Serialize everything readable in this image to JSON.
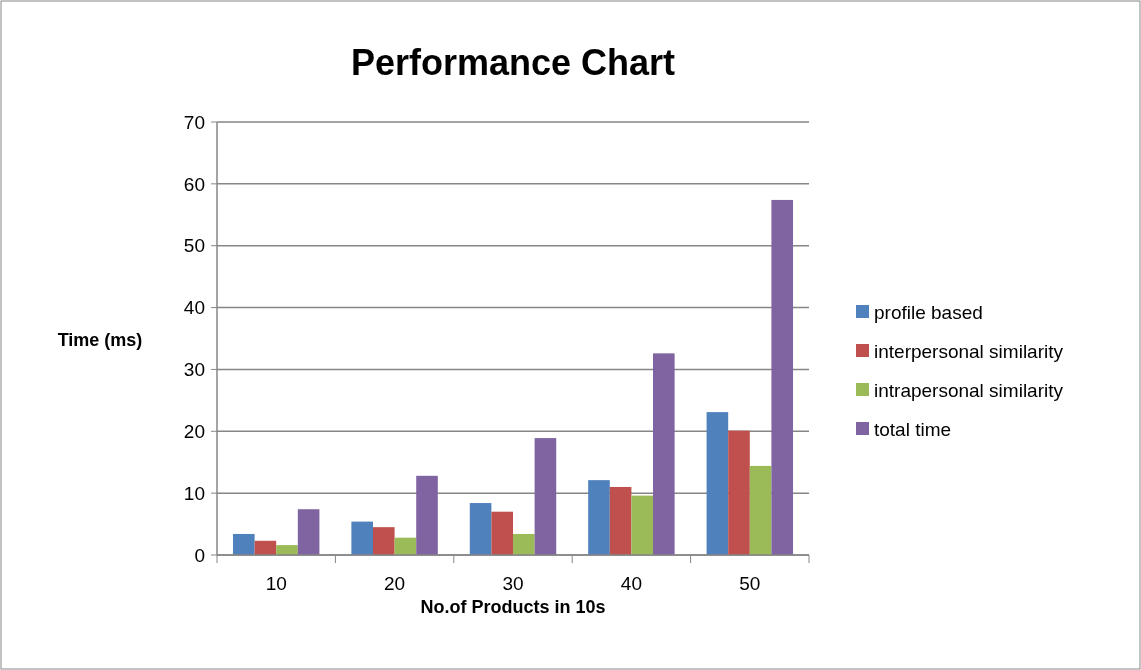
{
  "chart_data": {
    "type": "bar",
    "title": "Performance Chart",
    "xlabel": "No.of Products in 10s",
    "ylabel": "Time (ms)",
    "categories": [
      "10",
      "20",
      "30",
      "40",
      "50"
    ],
    "series": [
      {
        "name": "profile based",
        "color": "#4f81bd",
        "values": [
          3.4,
          5.4,
          8.4,
          12.1,
          23.1
        ]
      },
      {
        "name": "interpersonal similarity",
        "color": "#c0504d",
        "values": [
          2.3,
          4.5,
          7.0,
          11.0,
          20.1
        ]
      },
      {
        "name": "intrapersonal similarity",
        "color": "#9bbb59",
        "values": [
          1.6,
          2.8,
          3.4,
          9.6,
          14.4
        ]
      },
      {
        "name": "total time",
        "color": "#8064a2",
        "values": [
          7.4,
          12.8,
          18.9,
          32.6,
          57.4
        ]
      }
    ],
    "ylim": [
      0,
      70
    ],
    "yticks": [
      0,
      10,
      20,
      30,
      40,
      50,
      60,
      70
    ],
    "grid": "y",
    "legend": "right"
  }
}
